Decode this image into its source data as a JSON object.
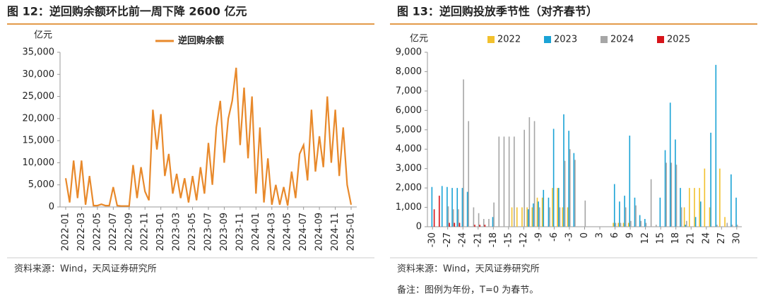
{
  "chart_data": [
    {
      "type": "line",
      "title": "图 12：逆回购余额环比前一周下降 2600 亿元",
      "y_label": "亿元",
      "source": "资料来源：Wind，天风证券研究所",
      "categories": [
        "2022-01",
        null,
        null,
        null,
        "2022-03",
        null,
        null,
        null,
        "2022-05",
        null,
        null,
        null,
        "2022-07",
        null,
        null,
        null,
        "2022-09",
        null,
        null,
        null,
        "2022-11",
        null,
        null,
        null,
        "2023-01",
        null,
        null,
        null,
        "2023-03",
        null,
        null,
        null,
        "2023-05",
        null,
        null,
        null,
        "2023-07",
        null,
        null,
        null,
        "2023-09",
        null,
        null,
        null,
        "2023-11",
        null,
        null,
        null,
        "2024-01",
        null,
        null,
        null,
        "2024-03",
        null,
        null,
        null,
        "2024-05",
        null,
        null,
        null,
        "2024-07",
        null,
        null,
        null,
        "2024-09",
        null,
        null,
        null,
        "2024-11",
        null,
        null,
        null,
        "2025-01"
      ],
      "series": [
        {
          "name": "逆回购余额",
          "color": "#E8892B",
          "values": [
            6500,
            1000,
            10500,
            2000,
            10500,
            500,
            7000,
            300,
            300,
            600,
            300,
            300,
            4500,
            300,
            200,
            200,
            200,
            9500,
            2000,
            9000,
            3500,
            1500,
            22000,
            13000,
            21000,
            7000,
            12000,
            3000,
            7500,
            2000,
            6500,
            1000,
            7000,
            1500,
            9000,
            3000,
            14500,
            5000,
            18000,
            24000,
            10000,
            20000,
            24000,
            31500,
            14000,
            27000,
            11000,
            25000,
            3000,
            18000,
            1000,
            11000,
            500,
            5000,
            500,
            4500,
            300,
            8000,
            2000,
            12000,
            14000,
            6000,
            22000,
            8000,
            16000,
            9000,
            25000,
            10000,
            22000,
            7000,
            18000,
            5000,
            500
          ]
        }
      ],
      "ylim": [
        0,
        35000
      ],
      "yticks": [
        0,
        {
          "value": 5000,
          "label": "5,000"
        },
        {
          "value": 10000,
          "label": "10,000"
        },
        {
          "value": 15000,
          "label": "15,000"
        },
        {
          "value": 20000,
          "label": "20,000"
        },
        {
          "value": 25000,
          "label": "25,000"
        },
        {
          "value": 30000,
          "label": "30,000"
        },
        {
          "value": 35000,
          "label": "35,000"
        }
      ]
    },
    {
      "type": "bar",
      "title": "图 13：逆回购投放季节性（对齐春节）",
      "y_label": "亿元",
      "source": "资料来源：Wind，天风证券研究所",
      "note": "备注：图例为年份，T=0 为春节。",
      "x": [
        -30,
        -29,
        -28,
        -27,
        -26,
        -25,
        -24,
        -23,
        -22,
        -21,
        -20,
        -19,
        -18,
        -17,
        -16,
        -15,
        -14,
        -13,
        -12,
        -11,
        -10,
        -9,
        -8,
        -7,
        -6,
        -5,
        -4,
        -3,
        -2,
        -1,
        0,
        1,
        2,
        3,
        4,
        5,
        6,
        7,
        8,
        9,
        10,
        11,
        12,
        13,
        14,
        15,
        16,
        17,
        18,
        19,
        20,
        21,
        22,
        23,
        24,
        25,
        26,
        27,
        28,
        29,
        30
      ],
      "xlim": [
        -31,
        31
      ],
      "xticks": [
        -30,
        -27,
        -24,
        -21,
        -18,
        -15,
        -12,
        -9,
        -6,
        -3,
        0,
        3,
        6,
        9,
        12,
        15,
        18,
        21,
        24,
        27,
        30
      ],
      "series": [
        {
          "name": "2022",
          "color": "#F2C12E",
          "values": [
            0,
            0,
            0,
            0,
            0,
            0,
            0,
            0,
            0,
            0,
            0,
            0,
            0,
            0,
            0,
            0,
            1000,
            1000,
            1000,
            1000,
            1000,
            1500,
            1500,
            0,
            2000,
            2000,
            1000,
            1000,
            0,
            0,
            0,
            0,
            0,
            0,
            0,
            0,
            200,
            200,
            200,
            200,
            0,
            0,
            0,
            0,
            0,
            0,
            0,
            0,
            0,
            0,
            1000,
            2000,
            2000,
            2000,
            3000,
            1000,
            0,
            3000,
            500,
            0,
            0
          ]
        },
        {
          "name": "2023",
          "color": "#1BA3D6",
          "values": [
            2050,
            0,
            2100,
            2050,
            2000,
            2000,
            2000,
            1800,
            0,
            0,
            0,
            0,
            500,
            0,
            0,
            0,
            0,
            0,
            0,
            900,
            1200,
            1300,
            1900,
            1500,
            5050,
            2000,
            5800,
            4950,
            3800,
            0,
            0,
            0,
            0,
            0,
            0,
            0,
            2200,
            1300,
            1600,
            4700,
            1500,
            600,
            400,
            0,
            0,
            1500,
            3950,
            6400,
            4500,
            2000,
            100,
            0,
            500,
            1300,
            0,
            4850,
            8350,
            0,
            0,
            2700,
            1500
          ]
        },
        {
          "name": "2024",
          "color": "#A6A6A6",
          "values": [
            0,
            0,
            0,
            1050,
            900,
            900,
            7600,
            5450,
            1000,
            700,
            400,
            400,
            1250,
            4650,
            4650,
            4650,
            4650,
            0,
            5000,
            5650,
            5450,
            1000,
            0,
            1000,
            0,
            1000,
            3400,
            4000,
            3450,
            0,
            1350,
            0,
            0,
            0,
            0,
            0,
            200,
            200,
            1000,
            300,
            1100,
            300,
            200,
            2450,
            100,
            0,
            3300,
            3300,
            3200,
            1000,
            300,
            0,
            0,
            0,
            0,
            0,
            100,
            0,
            200,
            100,
            100
          ]
        },
        {
          "name": "2025",
          "color": "#D7141A",
          "values": [
            900,
            1600,
            0,
            200,
            200,
            200,
            0,
            0,
            100,
            100,
            100,
            null,
            null,
            null,
            null,
            null,
            null,
            null,
            null,
            null,
            null,
            null,
            null,
            null,
            null,
            null,
            null,
            null,
            null,
            null,
            null,
            null,
            null,
            null,
            null,
            null,
            null,
            null,
            null,
            null,
            null,
            null,
            null,
            null,
            null,
            null,
            null,
            null,
            null,
            null,
            null,
            null,
            null,
            null,
            null,
            null,
            null,
            null,
            null,
            null,
            null
          ]
        }
      ],
      "ylim": [
        0,
        9000
      ],
      "yticks": [
        0,
        {
          "value": 1000,
          "label": "1,000"
        },
        {
          "value": 2000,
          "label": "2,000"
        },
        {
          "value": 3000,
          "label": "3,000"
        },
        {
          "value": 4000,
          "label": "4,000"
        },
        {
          "value": 5000,
          "label": "5,000"
        },
        {
          "value": 6000,
          "label": "6,000"
        },
        {
          "value": 7000,
          "label": "7,000"
        },
        {
          "value": 8000,
          "label": "8,000"
        },
        {
          "value": 9000,
          "label": "9,000"
        }
      ]
    }
  ]
}
